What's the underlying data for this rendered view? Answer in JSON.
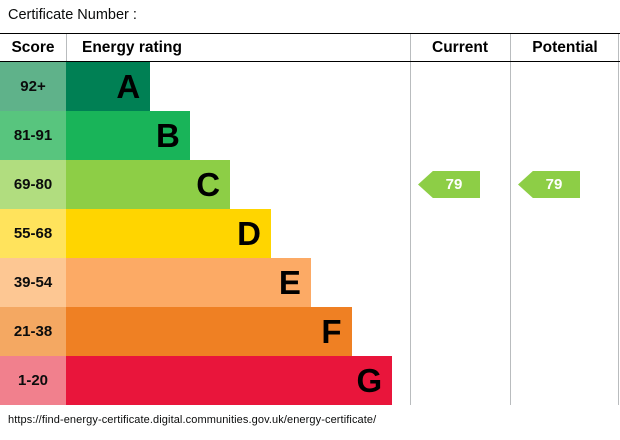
{
  "page": {
    "certificate_label": "Certificate Number :",
    "footer_url": "https://find-energy-certificate.digital.communities.gov.uk/energy-certificate/"
  },
  "table": {
    "columns": {
      "score": "Score",
      "rating": "Energy rating",
      "current": "Current",
      "potential": "Potential"
    }
  },
  "bands": [
    {
      "score": "92+",
      "letter": "A",
      "color": "#008054",
      "score_bg": "#5fb28a"
    },
    {
      "score": "81-91",
      "letter": "B",
      "color": "#19b459",
      "score_bg": "#58c57e"
    },
    {
      "score": "69-80",
      "letter": "C",
      "color": "#8dce46",
      "score_bg": "#b1dd7f"
    },
    {
      "score": "55-68",
      "letter": "D",
      "color": "#ffd500",
      "score_bg": "#ffe35c"
    },
    {
      "score": "39-54",
      "letter": "E",
      "color": "#fcaa65",
      "score_bg": "#fdc793"
    },
    {
      "score": "21-38",
      "letter": "F",
      "color": "#ef8023",
      "score_bg": "#f4a862"
    },
    {
      "score": "1-20",
      "letter": "G",
      "color": "#e9153b",
      "score_bg": "#f1808d"
    }
  ],
  "current": {
    "value": "79",
    "band": "C",
    "arrow_color": "#8dce46"
  },
  "potential": {
    "value": "79",
    "band": "C",
    "arrow_color": "#8dce46"
  },
  "chart_data": {
    "type": "bar",
    "title": "Energy rating",
    "categories": [
      "A",
      "B",
      "C",
      "D",
      "E",
      "F",
      "G"
    ],
    "score_ranges": [
      "92+",
      "81-91",
      "69-80",
      "55-68",
      "39-54",
      "21-38",
      "1-20"
    ],
    "band_colors": [
      "#008054",
      "#19b459",
      "#8dce46",
      "#ffd500",
      "#fcaa65",
      "#ef8023",
      "#e9153b"
    ],
    "bar_relative_lengths": [
      0.245,
      0.36,
      0.477,
      0.596,
      0.712,
      0.83,
      0.948
    ],
    "legend_position": "none",
    "markers": [
      {
        "name": "Current",
        "value": 79,
        "band": "C",
        "color": "#8dce46"
      },
      {
        "name": "Potential",
        "value": 79,
        "band": "C",
        "color": "#8dce46"
      }
    ]
  }
}
